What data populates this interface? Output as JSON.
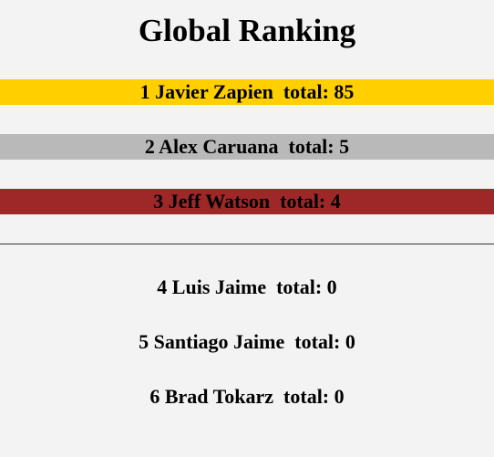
{
  "page": {
    "title": "Global Ranking"
  },
  "colors": {
    "gold": "#ffcf00",
    "silver": "#b9b9b9",
    "bronze": "#9e2828",
    "background": "#f3f3f3"
  },
  "podium": [
    {
      "text": "1 Javier Zapien  total: 85"
    },
    {
      "text": "2 Alex Caruana  total: 5"
    },
    {
      "text": "3 Jeff Watson  total: 4"
    }
  ],
  "others": [
    {
      "text": "4 Luis Jaime  total: 0"
    },
    {
      "text": "5 Santiago Jaime  total: 0"
    },
    {
      "text": "6 Brad Tokarz  total: 0"
    }
  ]
}
